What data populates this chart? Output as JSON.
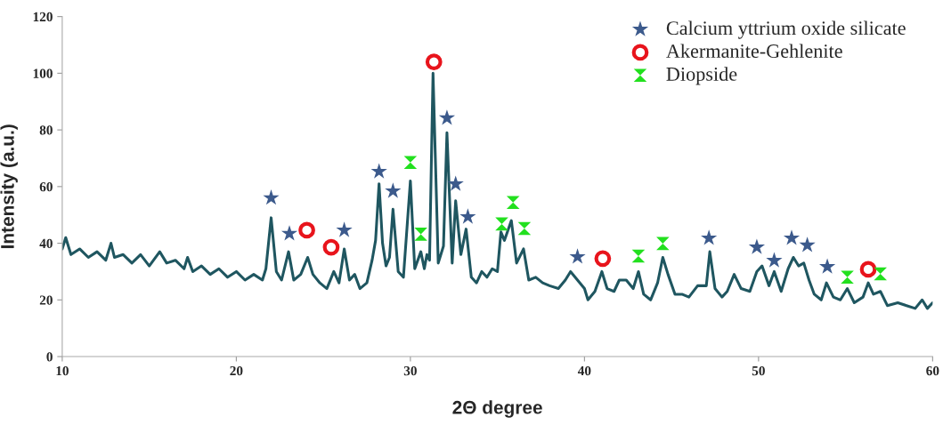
{
  "chart_data": {
    "type": "line",
    "xlabel": "2Θ degree",
    "ylabel": "Intensity (a.u.)",
    "xlim": [
      10,
      60
    ],
    "ylim": [
      0,
      120
    ],
    "xticks": [
      10,
      20,
      30,
      40,
      50,
      60
    ],
    "yticks": [
      0,
      20,
      40,
      60,
      80,
      100,
      120
    ],
    "grid": false,
    "legend": "top right",
    "series": [
      {
        "color": "#1f5660",
        "marker": "none",
        "x": [
          10.0,
          10.2,
          10.5,
          11.0,
          11.5,
          12.0,
          12.5,
          12.8,
          13.0,
          13.5,
          14.0,
          14.5,
          15.0,
          15.6,
          16.0,
          16.5,
          17.0,
          17.2,
          17.5,
          18.0,
          18.5,
          19.0,
          19.5,
          20.0,
          20.5,
          21.0,
          21.5,
          21.7,
          22.0,
          22.3,
          22.6,
          23.0,
          23.3,
          23.7,
          24.1,
          24.4,
          24.8,
          25.2,
          25.6,
          25.9,
          26.2,
          26.5,
          26.8,
          27.1,
          27.5,
          27.8,
          28.0,
          28.2,
          28.4,
          28.6,
          28.8,
          29.0,
          29.3,
          29.6,
          30.0,
          30.25,
          30.6,
          30.8,
          30.95,
          31.1,
          31.3,
          31.6,
          31.9,
          32.1,
          32.4,
          32.6,
          32.9,
          33.2,
          33.5,
          33.8,
          34.1,
          34.4,
          34.7,
          35.0,
          35.2,
          35.4,
          35.8,
          36.1,
          36.5,
          36.8,
          37.2,
          37.6,
          38.0,
          38.5,
          38.9,
          39.2,
          39.6,
          40.0,
          40.2,
          40.6,
          41.0,
          41.3,
          41.7,
          42.0,
          42.4,
          42.8,
          43.1,
          43.4,
          43.8,
          44.2,
          44.5,
          44.8,
          45.2,
          45.6,
          46.0,
          46.5,
          47.0,
          47.2,
          47.5,
          47.9,
          48.2,
          48.6,
          49.0,
          49.5,
          49.9,
          50.2,
          50.6,
          50.9,
          51.3,
          51.7,
          52.0,
          52.3,
          52.6,
          52.9,
          53.2,
          53.6,
          53.9,
          54.3,
          54.7,
          55.1,
          55.5,
          56.0,
          56.3,
          56.6,
          57.0,
          57.4,
          58.0,
          58.5,
          59.0,
          59.4,
          59.7,
          60.0
        ],
        "values": [
          38,
          42,
          36,
          38,
          35,
          37,
          34,
          40,
          35,
          36,
          33,
          36,
          32,
          37,
          33,
          34,
          31,
          35,
          30,
          32,
          29,
          31,
          28,
          30,
          27,
          29,
          27,
          31,
          49,
          30,
          27,
          37,
          27,
          29,
          35,
          29,
          26,
          24,
          30,
          26,
          38,
          27,
          29,
          24,
          26,
          34,
          41,
          61,
          40,
          32,
          35,
          52,
          30,
          28,
          62,
          31,
          37,
          31,
          36,
          34,
          100,
          33,
          39,
          79,
          33,
          55,
          36,
          45,
          28,
          26,
          30,
          28,
          31,
          30,
          44,
          41,
          48,
          33,
          38,
          27,
          28,
          26,
          25,
          24,
          27,
          30,
          27,
          24,
          20,
          23,
          30,
          24,
          23,
          27,
          27,
          24,
          30,
          22,
          20,
          26,
          35,
          29,
          22,
          22,
          21,
          25,
          25,
          37,
          24,
          21,
          23,
          29,
          24,
          23,
          30,
          32,
          25,
          30,
          23,
          31,
          35,
          32,
          33,
          27,
          22,
          20,
          26,
          21,
          20,
          24,
          19,
          21,
          26,
          22,
          23,
          18,
          19,
          18,
          17,
          20,
          17,
          19
        ]
      },
      {
        "type": "scatter",
        "name": "Calcium yttrium oxide silicate",
        "color": "#3c5a8c",
        "marker": "star",
        "x": [
          22.0,
          23.05,
          26.2,
          28.2,
          29.0,
          32.1,
          32.6,
          33.3,
          39.6,
          47.15,
          49.9,
          50.9,
          51.9,
          52.8,
          53.95
        ],
        "values": [
          56,
          43.4,
          44.6,
          65.3,
          58.4,
          84.2,
          60.9,
          49.3,
          35.2,
          41.8,
          38.6,
          33.9,
          41.8,
          39.3,
          31.7
        ]
      },
      {
        "type": "scatter",
        "name": "Akermanite-Gehlenite",
        "color": "#e8141c",
        "marker": "circle",
        "x": [
          24.05,
          25.45,
          31.35,
          41.05,
          56.3
        ],
        "values": [
          44.6,
          38.6,
          104,
          34.6,
          30.8
        ]
      },
      {
        "type": "scatter",
        "name": "Diopside",
        "color": "#22e01e",
        "marker": "triangle",
        "x": [
          30.0,
          30.6,
          35.25,
          35.9,
          36.55,
          43.1,
          44.5,
          55.1,
          57.0
        ],
        "values": [
          68.5,
          43.2,
          46.8,
          54.4,
          45.2,
          35.5,
          39.9,
          28.0,
          29.2
        ]
      }
    ]
  }
}
